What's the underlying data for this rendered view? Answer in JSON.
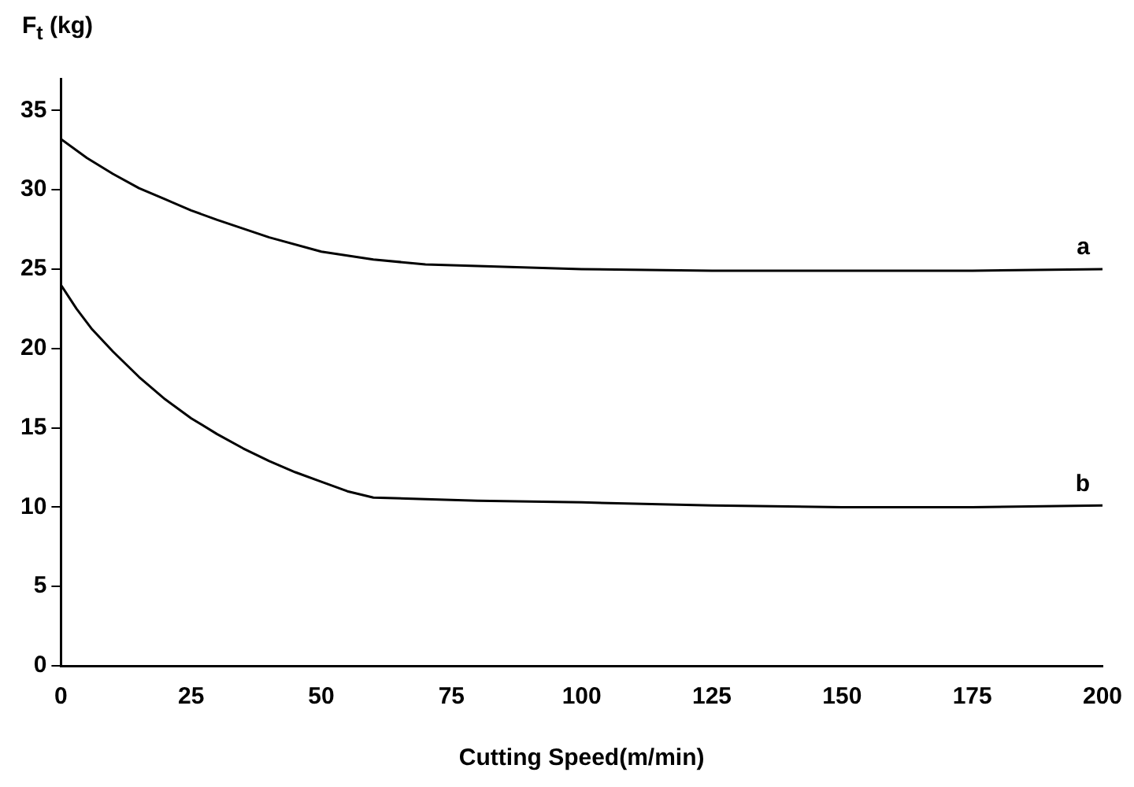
{
  "chart_data": {
    "type": "line",
    "xlabel": "Cutting Speed(m/min)",
    "ylabel": "F$_{t}$ (kg)",
    "xlim": [
      0,
      200
    ],
    "xticks": [
      0,
      25,
      50,
      75,
      100,
      125,
      150,
      175,
      200
    ],
    "ylim": [
      0,
      37
    ],
    "yticks": [
      0,
      5,
      10,
      15,
      20,
      25,
      30,
      35
    ],
    "grid": false,
    "legend": false,
    "marker": "none",
    "line_style": "solid",
    "series": [
      {
        "name": "a",
        "color": "#000000",
        "x": [
          0,
          5,
          10,
          15,
          20,
          25,
          30,
          40,
          50,
          60,
          70,
          80,
          100,
          125,
          150,
          175,
          200
        ],
        "values": [
          33.2,
          32,
          31,
          30.1,
          29.4,
          28.7,
          28.1,
          27,
          26.1,
          25.6,
          25.3,
          25.2,
          25,
          24.9,
          24.9,
          24.9,
          25
        ]
      },
      {
        "name": "b",
        "color": "#000000",
        "x": [
          0,
          3,
          6,
          10,
          15,
          20,
          25,
          30,
          35,
          40,
          45,
          50,
          55,
          60,
          70,
          80,
          100,
          125,
          150,
          175,
          200
        ],
        "values": [
          24,
          22.5,
          21.2,
          19.8,
          18.2,
          16.8,
          15.6,
          14.6,
          13.7,
          12.9,
          12.2,
          11.6,
          11,
          10.6,
          10.5,
          10.4,
          10.3,
          10.1,
          10,
          10,
          10.1
        ]
      }
    ]
  }
}
